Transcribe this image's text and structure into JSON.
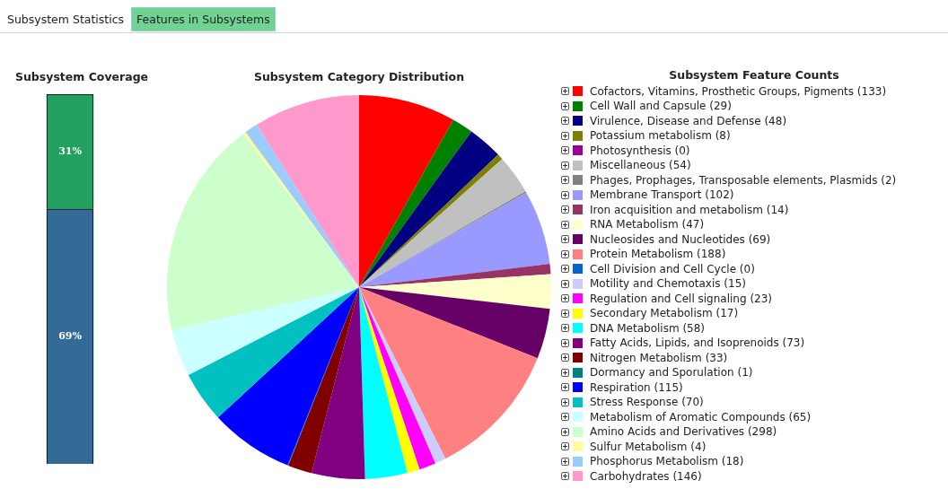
{
  "chart_data": [
    {
      "type": "other",
      "annotations": [
        "Subsystem Statistics",
        "Features in Subsystems"
      ]
    },
    {
      "type": "bar",
      "title": "Subsystem Coverage",
      "categories": [
        null
      ],
      "stacked": true,
      "ylim": [
        0,
        100
      ],
      "tick_labels": false,
      "legend": false,
      "series": [
        {
          "color": "#336b96",
          "values": [
            69
          ],
          "value_labels": [
            "69%"
          ]
        },
        {
          "color": "#22a05f",
          "values": [
            31
          ],
          "value_labels": [
            "31%"
          ]
        }
      ]
    },
    {
      "type": "pie",
      "title": "Subsystem Category Distribution",
      "legend_title": "Subsystem Feature Counts",
      "legend": "right",
      "categories": [
        "Cofactors, Vitamins, Prosthetic Groups, Pigments (133)",
        "Cell Wall and Capsule (29)",
        "Virulence, Disease and Defense (48)",
        "Potassium metabolism (8)",
        "Photosynthesis (0)",
        "Miscellaneous (54)",
        "Phages, Prophages, Transposable elements, Plasmids (2)",
        "Membrane Transport (102)",
        "Iron acquisition and metabolism (14)",
        "RNA Metabolism (47)",
        "Nucleosides and Nucleotides (69)",
        "Protein Metabolism (188)",
        "Cell Division and Cell Cycle (0)",
        "Motility and Chemotaxis (15)",
        "Regulation and Cell signaling (23)",
        "Secondary Metabolism (17)",
        "DNA Metabolism (58)",
        "Fatty Acids, Lipids, and Isoprenoids (73)",
        "Nitrogen Metabolism (33)",
        "Dormancy and Sporulation (1)",
        "Respiration (115)",
        "Stress Response (70)",
        "Metabolism of Aromatic Compounds (65)",
        "Amino Acids and Derivatives (298)",
        "Sulfur Metabolism (4)",
        "Phosphorus Metabolism (18)",
        "Carbohydrates (146)"
      ],
      "values": [
        133,
        29,
        48,
        8,
        0,
        54,
        2,
        102,
        14,
        47,
        69,
        188,
        0,
        15,
        23,
        17,
        58,
        73,
        33,
        1,
        115,
        70,
        65,
        298,
        4,
        18,
        146
      ],
      "colors": [
        "#ff0000",
        "#008000",
        "#000080",
        "#808000",
        "#990099",
        "#c0c0c0",
        "#808080",
        "#9999ff",
        "#993366",
        "#ffffcc",
        "#660066",
        "#ff8080",
        "#0066cc",
        "#ccccff",
        "#ff00ff",
        "#ffff00",
        "#00ffff",
        "#800080",
        "#800000",
        "#008080",
        "#0000ff",
        "#00c0c0",
        "#ccffff",
        "#ccffcc",
        "#ffff99",
        "#99ccff",
        "#ff99cc"
      ]
    }
  ]
}
